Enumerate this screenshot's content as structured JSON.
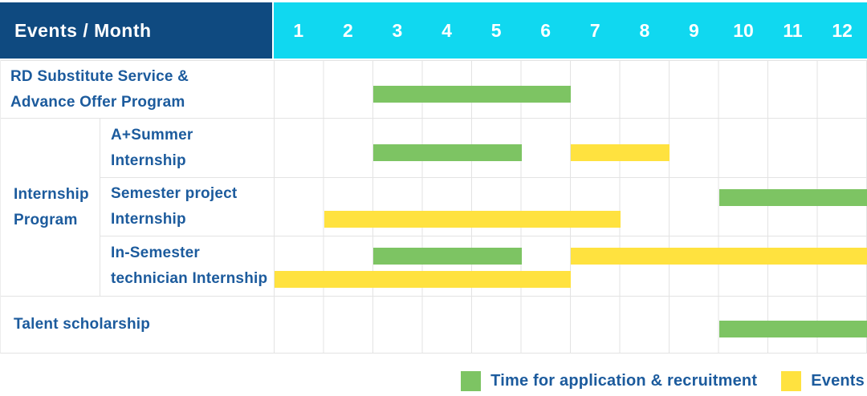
{
  "colors": {
    "header_bg": "#0F4A80",
    "months_bg": "#10D8F0",
    "application": "#7DC463",
    "events": "#FFE23F",
    "label_text": "#1C5B9D",
    "grid_line": "#E3E3E3",
    "header_text": "#FFFFFF"
  },
  "header": {
    "label": "Events / Month",
    "months": [
      "1",
      "2",
      "3",
      "4",
      "5",
      "6",
      "7",
      "8",
      "9",
      "10",
      "11",
      "12"
    ]
  },
  "rows": [
    {
      "name": "rd-substitute-service",
      "label_lines": [
        "RD Substitute Service &",
        "Advance Offer Program"
      ],
      "bars": [
        {
          "kind": "application",
          "start": 3,
          "end": 6,
          "lane": "single"
        }
      ]
    },
    {
      "name": "internship-program",
      "label_lines": [
        "Internship",
        "Program"
      ],
      "children": [
        {
          "name": "a-plus-summer-internship",
          "label_lines": [
            "A+Summer",
            "Internship"
          ],
          "bars": [
            {
              "kind": "application",
              "start": 3,
              "end": 5,
              "lane": "single"
            },
            {
              "kind": "events",
              "start": 7,
              "end": 8,
              "lane": "single"
            }
          ]
        },
        {
          "name": "semester-project-internship",
          "label_lines": [
            "Semester project",
            "Internship"
          ],
          "bars": [
            {
              "kind": "application",
              "start": 10,
              "end": 12,
              "lane": "top"
            },
            {
              "kind": "events",
              "start": 2,
              "end": 7,
              "lane": "bottom"
            }
          ]
        },
        {
          "name": "in-semester-technician-internship",
          "label_lines": [
            "In-Semester",
            "technician Internship"
          ],
          "bars": [
            {
              "kind": "application",
              "start": 3,
              "end": 5,
              "lane": "top"
            },
            {
              "kind": "events",
              "start": 7,
              "end": 12,
              "lane": "top"
            },
            {
              "kind": "events",
              "start": 1,
              "end": 6,
              "lane": "bottom"
            }
          ]
        }
      ]
    },
    {
      "name": "talent-scholarship",
      "label_lines": [
        "Talent scholarship"
      ],
      "bars": [
        {
          "kind": "application",
          "start": 10,
          "end": 12,
          "lane": "single"
        }
      ]
    }
  ],
  "legend": {
    "items": [
      {
        "key": "application",
        "label": "Time for application & recruitment",
        "color": "#7DC463"
      },
      {
        "key": "events",
        "label": "Events",
        "color": "#FFE23F"
      }
    ]
  },
  "chart_data": {
    "type": "bar",
    "subtype": "gantt-schedule",
    "title": "Events / Month",
    "x_axis": {
      "label": "Month",
      "ticks": [
        1,
        2,
        3,
        4,
        5,
        6,
        7,
        8,
        9,
        10,
        11,
        12
      ],
      "range": [
        1,
        12
      ]
    },
    "grid": true,
    "legend_position": "bottom-right",
    "series_names": {
      "application": "Time for application & recruitment",
      "events": "Events"
    },
    "rows": [
      {
        "label": "RD Substitute Service & Advance Offer Program",
        "group": null,
        "spans": [
          {
            "series": "application",
            "start_month": 3,
            "end_month": 6
          }
        ]
      },
      {
        "label": "A+Summer Internship",
        "group": "Internship Program",
        "spans": [
          {
            "series": "application",
            "start_month": 3,
            "end_month": 5
          },
          {
            "series": "events",
            "start_month": 7,
            "end_month": 8
          }
        ]
      },
      {
        "label": "Semester project Internship",
        "group": "Internship Program",
        "spans": [
          {
            "series": "application",
            "start_month": 10,
            "end_month": 12
          },
          {
            "series": "events",
            "start_month": 2,
            "end_month": 7
          }
        ]
      },
      {
        "label": "In-Semester technician Internship",
        "group": "Internship Program",
        "spans": [
          {
            "series": "application",
            "start_month": 3,
            "end_month": 5
          },
          {
            "series": "events",
            "start_month": 7,
            "end_month": 12
          },
          {
            "series": "events",
            "start_month": 1,
            "end_month": 6
          }
        ]
      },
      {
        "label": "Talent scholarship",
        "group": null,
        "spans": [
          {
            "series": "application",
            "start_month": 10,
            "end_month": 12
          }
        ]
      }
    ]
  }
}
